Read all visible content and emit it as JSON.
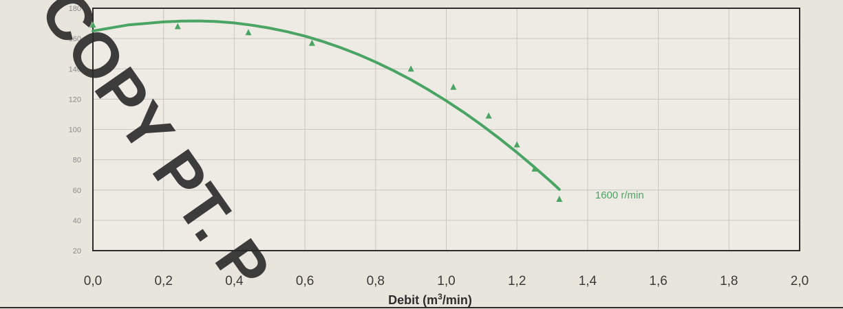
{
  "chart_data": {
    "type": "line",
    "xlabel_main": "Debit (m",
    "xlabel_sup": "3",
    "xlabel_rest": "/min)",
    "xlim": [
      0.0,
      2.0
    ],
    "ylim": [
      20,
      180
    ],
    "x_ticks": [
      "0,0",
      "0,2",
      "0,4",
      "0,6",
      "0,8",
      "1,0",
      "1,2",
      "1,4",
      "1,6",
      "1,8",
      "2,0"
    ],
    "y_ticks": [
      "20",
      "40",
      "60",
      "80",
      "100",
      "120",
      "140",
      "160",
      "180"
    ],
    "grid": true,
    "series": [
      {
        "name": "1600 r/min",
        "color": "#4aa463",
        "curve_x": [
          0.0,
          0.05,
          0.1,
          0.15,
          0.2,
          0.25,
          0.3,
          0.35,
          0.4,
          0.45,
          0.5,
          0.55,
          0.6,
          0.65,
          0.7,
          0.75,
          0.8,
          0.85,
          0.9,
          0.95,
          1.0,
          1.05,
          1.1,
          1.15,
          1.2,
          1.25,
          1.3,
          1.32
        ],
        "curve_y": [
          165,
          167,
          169,
          170,
          171,
          171.5,
          171.6,
          171.2,
          170.3,
          168.8,
          166.9,
          164.5,
          161.6,
          158.1,
          154.1,
          149.6,
          144.5,
          138.9,
          132.8,
          126.1,
          118.9,
          111.2,
          102.9,
          94.1,
          84.8,
          75,
          64.7,
          60.4
        ],
        "points_x": [
          0.0,
          0.24,
          0.44,
          0.62,
          0.9,
          1.02,
          1.12,
          1.2,
          1.25,
          1.32
        ],
        "points_y": [
          169,
          168,
          164,
          157,
          140,
          128,
          109,
          90,
          74,
          54
        ]
      }
    ]
  },
  "watermark": "COPY PT. P"
}
